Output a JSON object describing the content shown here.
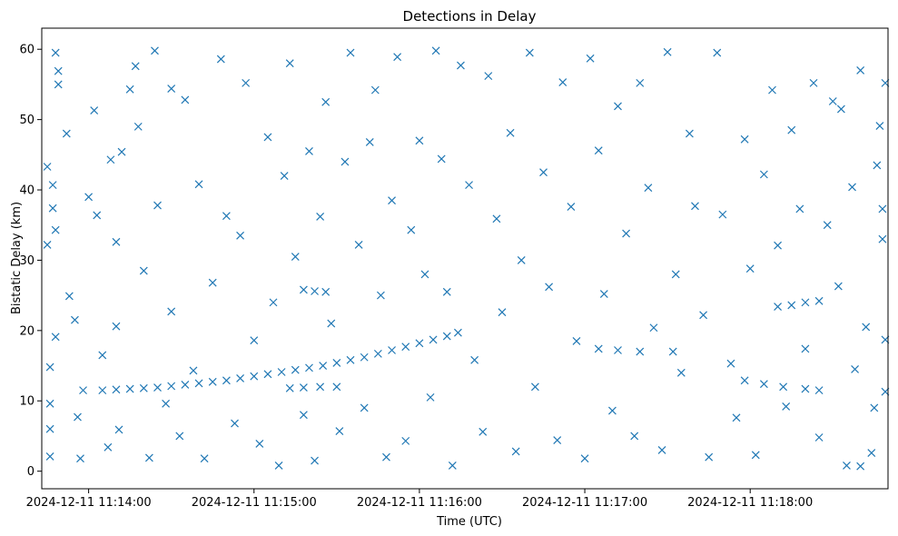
{
  "chart_data": {
    "type": "scatter",
    "title": "Detections in Delay",
    "xlabel": "Time (UTC)",
    "ylabel": "Bistatic Delay (km)",
    "marker": "x",
    "color": "#1f77b4",
    "grid": false,
    "legend": "none",
    "xlim": [
      "2024-12-11 11:13:43",
      "2024-12-11 11:18:50"
    ],
    "ylim": [
      -2.5,
      63
    ],
    "x_ticks": [
      "2024-12-11 11:14:00",
      "2024-12-11 11:15:00",
      "2024-12-11 11:16:00",
      "2024-12-11 11:17:00",
      "2024-12-11 11:18:00"
    ],
    "y_ticks": [
      0,
      10,
      20,
      30,
      40,
      50,
      60
    ],
    "series": [
      {
        "values": [
          [
            "2024-12-11 11:14:05",
            11.5
          ],
          [
            "2024-12-11 11:14:10",
            11.6
          ],
          [
            "2024-12-11 11:14:15",
            11.7
          ],
          [
            "2024-12-11 11:14:20",
            11.8
          ],
          [
            "2024-12-11 11:14:25",
            11.9
          ],
          [
            "2024-12-11 11:14:30",
            12.1
          ],
          [
            "2024-12-11 11:14:35",
            12.3
          ],
          [
            "2024-12-11 11:14:40",
            12.5
          ],
          [
            "2024-12-11 11:14:45",
            12.7
          ],
          [
            "2024-12-11 11:14:50",
            12.9
          ],
          [
            "2024-12-11 11:14:55",
            13.2
          ],
          [
            "2024-12-11 11:15:00",
            13.5
          ],
          [
            "2024-12-11 11:15:05",
            13.8
          ],
          [
            "2024-12-11 11:15:10",
            14.1
          ],
          [
            "2024-12-11 11:15:15",
            14.4
          ],
          [
            "2024-12-11 11:15:20",
            14.7
          ],
          [
            "2024-12-11 11:15:25",
            15.0
          ],
          [
            "2024-12-11 11:15:30",
            15.4
          ],
          [
            "2024-12-11 11:15:35",
            15.8
          ],
          [
            "2024-12-11 11:15:40",
            16.2
          ],
          [
            "2024-12-11 11:15:45",
            16.7
          ],
          [
            "2024-12-11 11:15:50",
            17.2
          ],
          [
            "2024-12-11 11:15:55",
            17.7
          ],
          [
            "2024-12-11 11:16:00",
            18.2
          ],
          [
            "2024-12-11 11:16:05",
            18.7
          ],
          [
            "2024-12-11 11:16:10",
            19.2
          ],
          [
            "2024-12-11 11:16:14",
            19.7
          ],
          [
            "2024-12-11 11:15:13",
            11.8
          ],
          [
            "2024-12-11 11:15:18",
            11.9
          ],
          [
            "2024-12-11 11:15:24",
            12.0
          ],
          [
            "2024-12-11 11:15:30",
            12.0
          ],
          [
            "2024-12-11 11:15:18",
            25.8
          ],
          [
            "2024-12-11 11:15:22",
            25.6
          ],
          [
            "2024-12-11 11:15:26",
            25.5
          ],
          [
            "2024-12-11 11:17:05",
            17.4
          ],
          [
            "2024-12-11 11:17:12",
            17.2
          ],
          [
            "2024-12-11 11:17:20",
            17.0
          ],
          [
            "2024-12-11 11:17:32",
            17.0
          ],
          [
            "2024-12-11 11:17:58",
            12.9
          ],
          [
            "2024-12-11 11:18:05",
            12.4
          ],
          [
            "2024-12-11 11:18:12",
            12.0
          ],
          [
            "2024-12-11 11:18:20",
            11.7
          ],
          [
            "2024-12-11 11:18:25",
            11.5
          ],
          [
            "2024-12-11 11:18:10",
            23.4
          ],
          [
            "2024-12-11 11:18:15",
            23.6
          ],
          [
            "2024-12-11 11:18:20",
            24.0
          ],
          [
            "2024-12-11 11:18:25",
            24.2
          ],
          [
            "2024-12-11 11:13:45",
            43.3
          ],
          [
            "2024-12-11 11:13:45",
            32.2
          ],
          [
            "2024-12-11 11:13:46",
            14.8
          ],
          [
            "2024-12-11 11:13:46",
            9.6
          ],
          [
            "2024-12-11 11:13:46",
            6.0
          ],
          [
            "2024-12-11 11:13:46",
            2.1
          ],
          [
            "2024-12-11 11:13:48",
            59.5
          ],
          [
            "2024-12-11 11:13:49",
            56.9
          ],
          [
            "2024-12-11 11:13:47",
            40.7
          ],
          [
            "2024-12-11 11:13:47",
            37.4
          ],
          [
            "2024-12-11 11:13:48",
            34.3
          ],
          [
            "2024-12-11 11:13:48",
            19.1
          ],
          [
            "2024-12-11 11:13:49",
            55.0
          ],
          [
            "2024-12-11 11:13:52",
            48.0
          ],
          [
            "2024-12-11 11:13:53",
            24.9
          ],
          [
            "2024-12-11 11:13:55",
            21.5
          ],
          [
            "2024-12-11 11:13:56",
            7.7
          ],
          [
            "2024-12-11 11:13:57",
            1.8
          ],
          [
            "2024-12-11 11:13:58",
            11.5
          ],
          [
            "2024-12-11 11:14:00",
            39.0
          ],
          [
            "2024-12-11 11:14:02",
            51.3
          ],
          [
            "2024-12-11 11:14:03",
            36.4
          ],
          [
            "2024-12-11 11:14:05",
            16.5
          ],
          [
            "2024-12-11 11:14:07",
            3.4
          ],
          [
            "2024-12-11 11:14:08",
            44.3
          ],
          [
            "2024-12-11 11:14:10",
            32.6
          ],
          [
            "2024-12-11 11:14:10",
            20.6
          ],
          [
            "2024-12-11 11:14:11",
            5.9
          ],
          [
            "2024-12-11 11:14:12",
            45.4
          ],
          [
            "2024-12-11 11:14:15",
            54.3
          ],
          [
            "2024-12-11 11:14:17",
            57.6
          ],
          [
            "2024-12-11 11:14:18",
            49.0
          ],
          [
            "2024-12-11 11:14:20",
            28.5
          ],
          [
            "2024-12-11 11:14:22",
            1.9
          ],
          [
            "2024-12-11 11:14:24",
            59.8
          ],
          [
            "2024-12-11 11:14:25",
            37.8
          ],
          [
            "2024-12-11 11:14:28",
            9.6
          ],
          [
            "2024-12-11 11:14:30",
            54.4
          ],
          [
            "2024-12-11 11:14:30",
            22.7
          ],
          [
            "2024-12-11 11:14:33",
            5.0
          ],
          [
            "2024-12-11 11:14:35",
            52.8
          ],
          [
            "2024-12-11 11:14:38",
            14.3
          ],
          [
            "2024-12-11 11:14:40",
            40.8
          ],
          [
            "2024-12-11 11:14:42",
            1.8
          ],
          [
            "2024-12-11 11:14:45",
            26.8
          ],
          [
            "2024-12-11 11:14:48",
            58.6
          ],
          [
            "2024-12-11 11:14:50",
            36.3
          ],
          [
            "2024-12-11 11:14:53",
            6.8
          ],
          [
            "2024-12-11 11:14:55",
            33.5
          ],
          [
            "2024-12-11 11:14:57",
            55.2
          ],
          [
            "2024-12-11 11:15:00",
            18.6
          ],
          [
            "2024-12-11 11:15:02",
            3.9
          ],
          [
            "2024-12-11 11:15:05",
            47.5
          ],
          [
            "2024-12-11 11:15:07",
            24.0
          ],
          [
            "2024-12-11 11:15:09",
            0.8
          ],
          [
            "2024-12-11 11:15:11",
            42.0
          ],
          [
            "2024-12-11 11:15:13",
            58.0
          ],
          [
            "2024-12-11 11:15:15",
            30.5
          ],
          [
            "2024-12-11 11:15:18",
            8.0
          ],
          [
            "2024-12-11 11:15:20",
            45.5
          ],
          [
            "2024-12-11 11:15:22",
            1.5
          ],
          [
            "2024-12-11 11:15:24",
            36.2
          ],
          [
            "2024-12-11 11:15:26",
            52.5
          ],
          [
            "2024-12-11 11:15:28",
            21.0
          ],
          [
            "2024-12-11 11:15:31",
            5.7
          ],
          [
            "2024-12-11 11:15:33",
            44.0
          ],
          [
            "2024-12-11 11:15:35",
            59.5
          ],
          [
            "2024-12-11 11:15:38",
            32.2
          ],
          [
            "2024-12-11 11:15:40",
            9.0
          ],
          [
            "2024-12-11 11:15:42",
            46.8
          ],
          [
            "2024-12-11 11:15:44",
            54.2
          ],
          [
            "2024-12-11 11:15:46",
            25.0
          ],
          [
            "2024-12-11 11:15:48",
            2.0
          ],
          [
            "2024-12-11 11:15:50",
            38.5
          ],
          [
            "2024-12-11 11:15:52",
            58.9
          ],
          [
            "2024-12-11 11:15:55",
            4.3
          ],
          [
            "2024-12-11 11:15:57",
            34.3
          ],
          [
            "2024-12-11 11:16:00",
            47.0
          ],
          [
            "2024-12-11 11:16:02",
            28.0
          ],
          [
            "2024-12-11 11:16:04",
            10.5
          ],
          [
            "2024-12-11 11:16:06",
            59.8
          ],
          [
            "2024-12-11 11:16:08",
            44.4
          ],
          [
            "2024-12-11 11:16:10",
            25.5
          ],
          [
            "2024-12-11 11:16:12",
            0.8
          ],
          [
            "2024-12-11 11:16:15",
            57.7
          ],
          [
            "2024-12-11 11:16:18",
            40.7
          ],
          [
            "2024-12-11 11:16:20",
            15.8
          ],
          [
            "2024-12-11 11:16:23",
            5.6
          ],
          [
            "2024-12-11 11:16:25",
            56.2
          ],
          [
            "2024-12-11 11:16:28",
            35.9
          ],
          [
            "2024-12-11 11:16:30",
            22.6
          ],
          [
            "2024-12-11 11:16:33",
            48.1
          ],
          [
            "2024-12-11 11:16:35",
            2.8
          ],
          [
            "2024-12-11 11:16:37",
            30.0
          ],
          [
            "2024-12-11 11:16:40",
            59.5
          ],
          [
            "2024-12-11 11:16:42",
            12.0
          ],
          [
            "2024-12-11 11:16:45",
            42.5
          ],
          [
            "2024-12-11 11:16:47",
            26.2
          ],
          [
            "2024-12-11 11:16:50",
            4.4
          ],
          [
            "2024-12-11 11:16:52",
            55.3
          ],
          [
            "2024-12-11 11:16:55",
            37.6
          ],
          [
            "2024-12-11 11:16:57",
            18.5
          ],
          [
            "2024-12-11 11:17:00",
            1.8
          ],
          [
            "2024-12-11 11:17:02",
            58.7
          ],
          [
            "2024-12-11 11:17:05",
            45.6
          ],
          [
            "2024-12-11 11:17:07",
            25.2
          ],
          [
            "2024-12-11 11:17:10",
            8.6
          ],
          [
            "2024-12-11 11:17:12",
            51.9
          ],
          [
            "2024-12-11 11:17:15",
            33.8
          ],
          [
            "2024-12-11 11:17:18",
            5.0
          ],
          [
            "2024-12-11 11:17:20",
            55.2
          ],
          [
            "2024-12-11 11:17:23",
            40.3
          ],
          [
            "2024-12-11 11:17:25",
            20.4
          ],
          [
            "2024-12-11 11:17:28",
            3.0
          ],
          [
            "2024-12-11 11:17:30",
            59.6
          ],
          [
            "2024-12-11 11:17:33",
            28.0
          ],
          [
            "2024-12-11 11:17:35",
            14.0
          ],
          [
            "2024-12-11 11:17:38",
            48.0
          ],
          [
            "2024-12-11 11:17:40",
            37.7
          ],
          [
            "2024-12-11 11:17:43",
            22.2
          ],
          [
            "2024-12-11 11:17:45",
            2.0
          ],
          [
            "2024-12-11 11:17:48",
            59.5
          ],
          [
            "2024-12-11 11:17:50",
            36.5
          ],
          [
            "2024-12-11 11:17:53",
            15.3
          ],
          [
            "2024-12-11 11:17:55",
            7.6
          ],
          [
            "2024-12-11 11:17:58",
            47.2
          ],
          [
            "2024-12-11 11:18:00",
            28.8
          ],
          [
            "2024-12-11 11:18:02",
            2.3
          ],
          [
            "2024-12-11 11:18:05",
            42.2
          ],
          [
            "2024-12-11 11:18:08",
            54.2
          ],
          [
            "2024-12-11 11:18:10",
            32.1
          ],
          [
            "2024-12-11 11:18:13",
            9.2
          ],
          [
            "2024-12-11 11:18:15",
            48.5
          ],
          [
            "2024-12-11 11:18:18",
            37.3
          ],
          [
            "2024-12-11 11:18:20",
            17.4
          ],
          [
            "2024-12-11 11:18:23",
            55.2
          ],
          [
            "2024-12-11 11:18:25",
            4.8
          ],
          [
            "2024-12-11 11:18:28",
            35.0
          ],
          [
            "2024-12-11 11:18:30",
            52.6
          ],
          [
            "2024-12-11 11:18:32",
            26.3
          ],
          [
            "2024-12-11 11:18:35",
            0.8
          ],
          [
            "2024-12-11 11:18:37",
            40.4
          ],
          [
            "2024-12-11 11:18:40",
            57.0
          ],
          [
            "2024-12-11 11:18:42",
            20.5
          ],
          [
            "2024-12-11 11:18:45",
            9.0
          ],
          [
            "2024-12-11 11:18:47",
            49.1
          ],
          [
            "2024-12-11 11:18:48",
            33.0
          ],
          [
            "2024-12-11 11:18:49",
            18.7
          ],
          [
            "2024-12-11 11:18:49",
            11.3
          ],
          [
            "2024-12-11 11:18:49",
            55.2
          ],
          [
            "2024-12-11 11:18:48",
            37.3
          ],
          [
            "2024-12-11 11:18:46",
            43.5
          ],
          [
            "2024-12-11 11:18:44",
            2.6
          ],
          [
            "2024-12-11 11:18:40",
            0.7
          ],
          [
            "2024-12-11 11:18:38",
            14.5
          ],
          [
            "2024-12-11 11:18:33",
            51.5
          ]
        ]
      }
    ]
  }
}
